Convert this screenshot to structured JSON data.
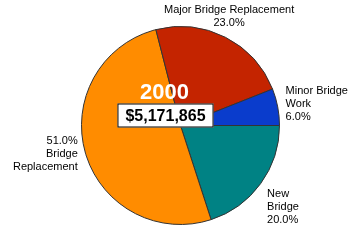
{
  "chart_data": {
    "type": "pie",
    "title": "2000",
    "annotations": [
      "$5,171,865"
    ],
    "categories": [
      "New Bridge",
      "Bridge Replacement",
      "Major Bridge Replacement",
      "Minor Bridge Work"
    ],
    "values": [
      20,
      51,
      23,
      6
    ],
    "value_labels": [
      "20.0%",
      "51.0%",
      "23.0%",
      "6.0%"
    ],
    "colors": [
      "#008284",
      "#ff8c00",
      "#c42400",
      "#0a3ccc"
    ],
    "data_labels": true
  }
}
